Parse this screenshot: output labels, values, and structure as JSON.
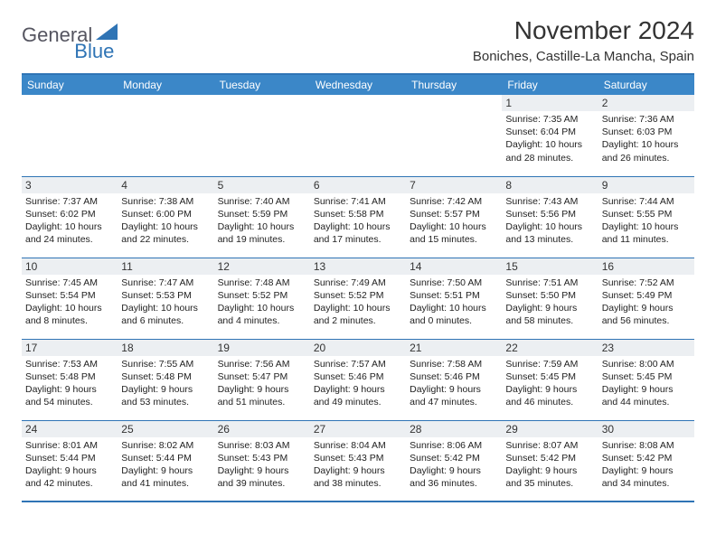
{
  "logo": {
    "part1": "General",
    "part2": "Blue"
  },
  "title": "November 2024",
  "location": "Boniches, Castille-La Mancha, Spain",
  "colors": {
    "header_bg": "#3b87c8",
    "header_fg": "#ffffff",
    "rule": "#2f74b5",
    "daynum_bg": "#eceff2",
    "text": "#222222",
    "logo_gray": "#555560",
    "logo_blue": "#2f74b5",
    "page_bg": "#ffffff"
  },
  "weekdays": [
    "Sunday",
    "Monday",
    "Tuesday",
    "Wednesday",
    "Thursday",
    "Friday",
    "Saturday"
  ],
  "weeks": [
    [
      {
        "day": "",
        "sunrise": "",
        "sunset": "",
        "daylight": ""
      },
      {
        "day": "",
        "sunrise": "",
        "sunset": "",
        "daylight": ""
      },
      {
        "day": "",
        "sunrise": "",
        "sunset": "",
        "daylight": ""
      },
      {
        "day": "",
        "sunrise": "",
        "sunset": "",
        "daylight": ""
      },
      {
        "day": "",
        "sunrise": "",
        "sunset": "",
        "daylight": ""
      },
      {
        "day": "1",
        "sunrise": "Sunrise: 7:35 AM",
        "sunset": "Sunset: 6:04 PM",
        "daylight": "Daylight: 10 hours and 28 minutes."
      },
      {
        "day": "2",
        "sunrise": "Sunrise: 7:36 AM",
        "sunset": "Sunset: 6:03 PM",
        "daylight": "Daylight: 10 hours and 26 minutes."
      }
    ],
    [
      {
        "day": "3",
        "sunrise": "Sunrise: 7:37 AM",
        "sunset": "Sunset: 6:02 PM",
        "daylight": "Daylight: 10 hours and 24 minutes."
      },
      {
        "day": "4",
        "sunrise": "Sunrise: 7:38 AM",
        "sunset": "Sunset: 6:00 PM",
        "daylight": "Daylight: 10 hours and 22 minutes."
      },
      {
        "day": "5",
        "sunrise": "Sunrise: 7:40 AM",
        "sunset": "Sunset: 5:59 PM",
        "daylight": "Daylight: 10 hours and 19 minutes."
      },
      {
        "day": "6",
        "sunrise": "Sunrise: 7:41 AM",
        "sunset": "Sunset: 5:58 PM",
        "daylight": "Daylight: 10 hours and 17 minutes."
      },
      {
        "day": "7",
        "sunrise": "Sunrise: 7:42 AM",
        "sunset": "Sunset: 5:57 PM",
        "daylight": "Daylight: 10 hours and 15 minutes."
      },
      {
        "day": "8",
        "sunrise": "Sunrise: 7:43 AM",
        "sunset": "Sunset: 5:56 PM",
        "daylight": "Daylight: 10 hours and 13 minutes."
      },
      {
        "day": "9",
        "sunrise": "Sunrise: 7:44 AM",
        "sunset": "Sunset: 5:55 PM",
        "daylight": "Daylight: 10 hours and 11 minutes."
      }
    ],
    [
      {
        "day": "10",
        "sunrise": "Sunrise: 7:45 AM",
        "sunset": "Sunset: 5:54 PM",
        "daylight": "Daylight: 10 hours and 8 minutes."
      },
      {
        "day": "11",
        "sunrise": "Sunrise: 7:47 AM",
        "sunset": "Sunset: 5:53 PM",
        "daylight": "Daylight: 10 hours and 6 minutes."
      },
      {
        "day": "12",
        "sunrise": "Sunrise: 7:48 AM",
        "sunset": "Sunset: 5:52 PM",
        "daylight": "Daylight: 10 hours and 4 minutes."
      },
      {
        "day": "13",
        "sunrise": "Sunrise: 7:49 AM",
        "sunset": "Sunset: 5:52 PM",
        "daylight": "Daylight: 10 hours and 2 minutes."
      },
      {
        "day": "14",
        "sunrise": "Sunrise: 7:50 AM",
        "sunset": "Sunset: 5:51 PM",
        "daylight": "Daylight: 10 hours and 0 minutes."
      },
      {
        "day": "15",
        "sunrise": "Sunrise: 7:51 AM",
        "sunset": "Sunset: 5:50 PM",
        "daylight": "Daylight: 9 hours and 58 minutes."
      },
      {
        "day": "16",
        "sunrise": "Sunrise: 7:52 AM",
        "sunset": "Sunset: 5:49 PM",
        "daylight": "Daylight: 9 hours and 56 minutes."
      }
    ],
    [
      {
        "day": "17",
        "sunrise": "Sunrise: 7:53 AM",
        "sunset": "Sunset: 5:48 PM",
        "daylight": "Daylight: 9 hours and 54 minutes."
      },
      {
        "day": "18",
        "sunrise": "Sunrise: 7:55 AM",
        "sunset": "Sunset: 5:48 PM",
        "daylight": "Daylight: 9 hours and 53 minutes."
      },
      {
        "day": "19",
        "sunrise": "Sunrise: 7:56 AM",
        "sunset": "Sunset: 5:47 PM",
        "daylight": "Daylight: 9 hours and 51 minutes."
      },
      {
        "day": "20",
        "sunrise": "Sunrise: 7:57 AM",
        "sunset": "Sunset: 5:46 PM",
        "daylight": "Daylight: 9 hours and 49 minutes."
      },
      {
        "day": "21",
        "sunrise": "Sunrise: 7:58 AM",
        "sunset": "Sunset: 5:46 PM",
        "daylight": "Daylight: 9 hours and 47 minutes."
      },
      {
        "day": "22",
        "sunrise": "Sunrise: 7:59 AM",
        "sunset": "Sunset: 5:45 PM",
        "daylight": "Daylight: 9 hours and 46 minutes."
      },
      {
        "day": "23",
        "sunrise": "Sunrise: 8:00 AM",
        "sunset": "Sunset: 5:45 PM",
        "daylight": "Daylight: 9 hours and 44 minutes."
      }
    ],
    [
      {
        "day": "24",
        "sunrise": "Sunrise: 8:01 AM",
        "sunset": "Sunset: 5:44 PM",
        "daylight": "Daylight: 9 hours and 42 minutes."
      },
      {
        "day": "25",
        "sunrise": "Sunrise: 8:02 AM",
        "sunset": "Sunset: 5:44 PM",
        "daylight": "Daylight: 9 hours and 41 minutes."
      },
      {
        "day": "26",
        "sunrise": "Sunrise: 8:03 AM",
        "sunset": "Sunset: 5:43 PM",
        "daylight": "Daylight: 9 hours and 39 minutes."
      },
      {
        "day": "27",
        "sunrise": "Sunrise: 8:04 AM",
        "sunset": "Sunset: 5:43 PM",
        "daylight": "Daylight: 9 hours and 38 minutes."
      },
      {
        "day": "28",
        "sunrise": "Sunrise: 8:06 AM",
        "sunset": "Sunset: 5:42 PM",
        "daylight": "Daylight: 9 hours and 36 minutes."
      },
      {
        "day": "29",
        "sunrise": "Sunrise: 8:07 AM",
        "sunset": "Sunset: 5:42 PM",
        "daylight": "Daylight: 9 hours and 35 minutes."
      },
      {
        "day": "30",
        "sunrise": "Sunrise: 8:08 AM",
        "sunset": "Sunset: 5:42 PM",
        "daylight": "Daylight: 9 hours and 34 minutes."
      }
    ]
  ]
}
